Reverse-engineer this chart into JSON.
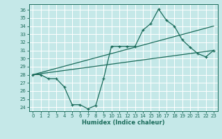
{
  "xlabel": "Humidex (Indice chaleur)",
  "bg_color": "#c5e8e8",
  "grid_color": "#ffffff",
  "line_color": "#1a6b5a",
  "xlim": [
    -0.5,
    23.5
  ],
  "ylim": [
    23.5,
    36.7
  ],
  "yticks": [
    24,
    25,
    26,
    27,
    28,
    29,
    30,
    31,
    32,
    33,
    34,
    35,
    36
  ],
  "xticks": [
    0,
    1,
    2,
    3,
    4,
    5,
    6,
    7,
    8,
    9,
    10,
    11,
    12,
    13,
    14,
    15,
    16,
    17,
    18,
    19,
    20,
    21,
    22,
    23
  ],
  "line1_zigzag": {
    "x": [
      0,
      1,
      2,
      3,
      4,
      5,
      6,
      7,
      8,
      9,
      10,
      11,
      12,
      13,
      14,
      15,
      16,
      17,
      18,
      19,
      20,
      21,
      22,
      23
    ],
    "y": [
      28,
      28,
      27.5,
      27.5,
      26.5,
      24.3,
      24.3,
      23.8,
      24.2,
      27.5,
      31.5,
      31.5,
      31.5,
      31.5,
      33.5,
      34.3,
      36.1,
      34.7,
      34.0,
      32.3,
      31.4,
      30.6,
      30.2,
      31.0
    ]
  },
  "line2_upper": {
    "x": [
      0,
      23
    ],
    "y": [
      28,
      34.0
    ]
  },
  "line3_lower": {
    "x": [
      0,
      23
    ],
    "y": [
      28,
      31.0
    ]
  }
}
